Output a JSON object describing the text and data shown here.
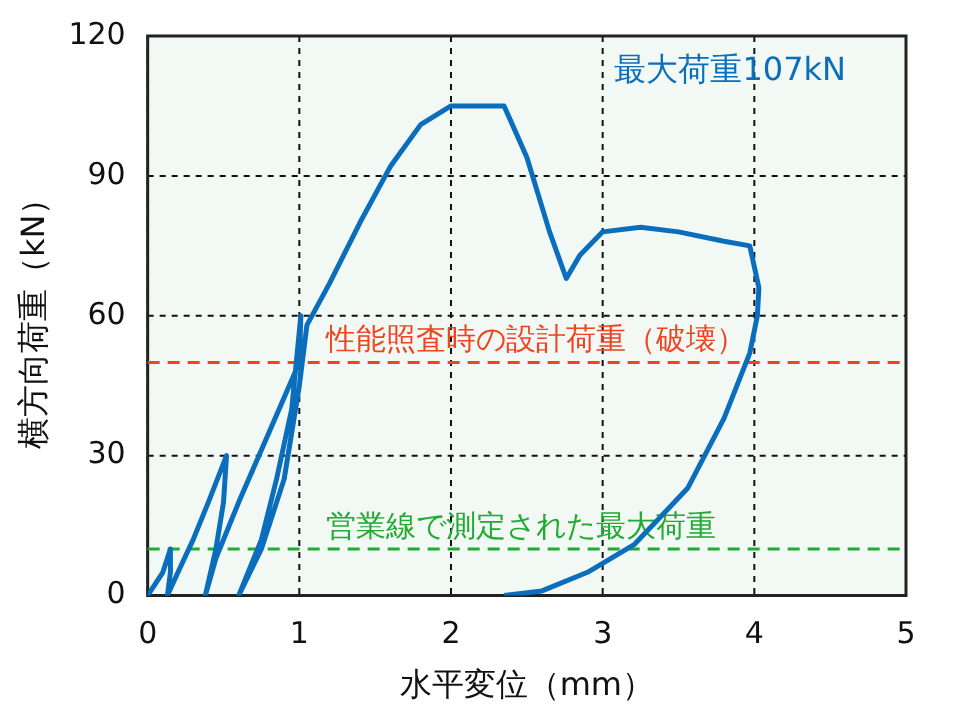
{
  "chart_data": {
    "type": "line",
    "xlabel": "水平変位（mm）",
    "ylabel": "横方向荷重（kN）",
    "xlim": [
      0,
      5
    ],
    "xticks": [
      0,
      1,
      2,
      3,
      4,
      5
    ],
    "ylim": [
      0,
      120
    ],
    "yticks": [
      0,
      30,
      60,
      90,
      120
    ],
    "grid": true,
    "legend": false,
    "marker": "none",
    "line_style": "solid",
    "series": [
      {
        "color": "#0a6ebd",
        "x": [
          0,
          0.1,
          0.15,
          0.15,
          0.13,
          0.2,
          0.3,
          0.4,
          0.52,
          0.5,
          0.45,
          0.38,
          0.45,
          0.6,
          0.8,
          1.0,
          1.01,
          0.95,
          0.85,
          0.75,
          0.6,
          0.75,
          0.9,
          1.0,
          1.05,
          1.2,
          1.4,
          1.6,
          1.8,
          2.0,
          2.2,
          2.35,
          2.5,
          2.65,
          2.76,
          2.85,
          3.0,
          3.25,
          3.5,
          3.8,
          3.97,
          4.03,
          4.02,
          3.97,
          3.8,
          3.56,
          3.21,
          2.9,
          2.6,
          2.35
        ],
        "values": [
          0,
          5,
          10,
          5,
          0,
          5,
          12,
          20,
          30,
          20,
          10,
          0,
          8,
          20,
          35,
          50,
          60,
          40,
          25,
          12,
          0,
          10,
          25,
          45,
          58,
          67,
          80,
          92,
          101,
          105,
          105,
          105,
          94,
          78,
          68,
          73,
          78,
          79,
          78,
          76,
          75,
          66,
          60,
          52,
          38,
          23,
          11,
          5,
          1,
          0
        ]
      }
    ],
    "ref_lines": [
      {
        "axis": "y",
        "value": 50,
        "label": "性能照査時の設計荷重（破壊）",
        "color": "#ee4422",
        "line_style": "dashed"
      },
      {
        "axis": "y",
        "value": 10,
        "label": "営業線で測定された最大荷重",
        "color": "#22aa33",
        "line_style": "dashed"
      }
    ],
    "annotations": [
      "最大荷重107kN"
    ]
  }
}
